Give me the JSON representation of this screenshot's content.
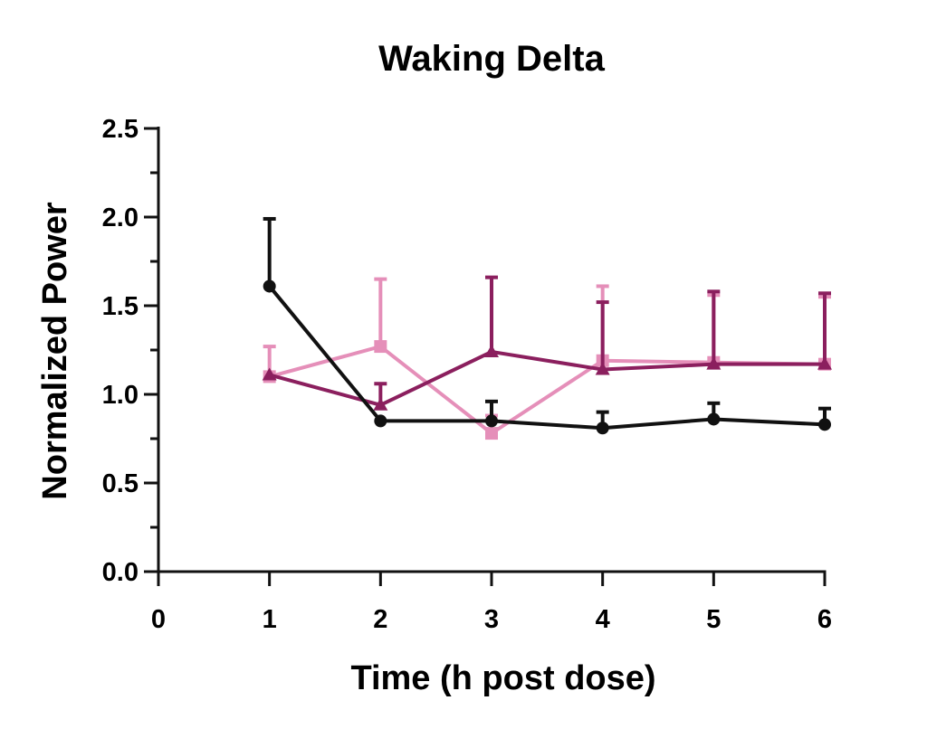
{
  "chart_data": {
    "type": "line",
    "title": "Waking Delta",
    "xlabel": "Time (h post dose)",
    "ylabel": "Normalized Power",
    "xlim": [
      0,
      6
    ],
    "ylim": [
      0,
      2.5
    ],
    "x_ticks": [
      0,
      1,
      2,
      3,
      4,
      5,
      6
    ],
    "x_tick_labels": [
      "0",
      "1",
      "2",
      "3",
      "4",
      "5",
      "6"
    ],
    "y_ticks": [
      0,
      0.5,
      1.0,
      1.5,
      2.0,
      2.5
    ],
    "y_tick_labels": [
      "0.0",
      "0.5",
      "1.0",
      "1.5",
      "2.0",
      "2.5"
    ],
    "y_minor_ticks": [
      0.25,
      0.75,
      1.25,
      1.75,
      2.25
    ],
    "grid": false,
    "legend": "none",
    "series": [
      {
        "marker": "circle",
        "color": "#111111",
        "x": [
          1,
          2,
          3,
          4,
          5,
          6
        ],
        "y": [
          1.61,
          0.85,
          0.85,
          0.81,
          0.86,
          0.83
        ],
        "error_upper": [
          0.38,
          0.0,
          0.11,
          0.09,
          0.09,
          0.09
        ]
      },
      {
        "marker": "triangle",
        "color": "#8b1f5e",
        "x": [
          1,
          2,
          3,
          4,
          5,
          6
        ],
        "y": [
          1.11,
          0.94,
          1.24,
          1.14,
          1.17,
          1.17
        ],
        "error_upper": [
          0.0,
          0.12,
          0.42,
          0.38,
          0.41,
          0.4
        ]
      },
      {
        "marker": "square",
        "color": "#e58fb9",
        "x": [
          1,
          2,
          3,
          4,
          5,
          6
        ],
        "y": [
          1.1,
          1.27,
          0.78,
          1.19,
          1.18,
          1.17
        ],
        "error_upper": [
          0.17,
          0.38,
          0.1,
          0.42,
          0.38,
          0.38
        ]
      }
    ]
  }
}
